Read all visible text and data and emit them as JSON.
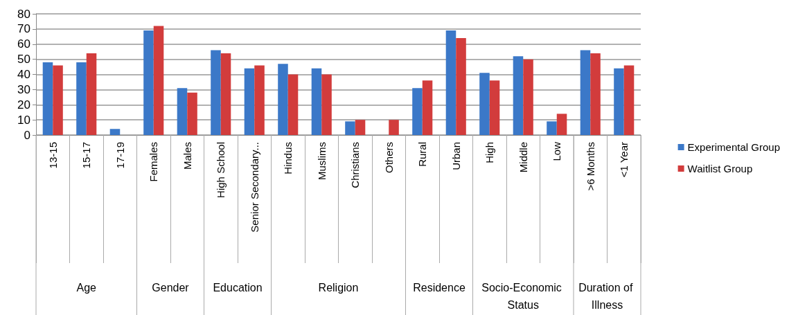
{
  "chart_data": {
    "type": "bar",
    "categories": [
      "13-15",
      "15-17",
      "17-19",
      "Females",
      "Males",
      "High School",
      "Senior Secondary...",
      "Hindus",
      "Muslims",
      "Christians",
      "Others",
      "Rural",
      "Urban",
      "High",
      "Middle",
      "Low",
      ">6 Months",
      "<1 Year"
    ],
    "series": [
      {
        "name": "Experimental Group",
        "color": "#3b78c8",
        "values": [
          48,
          48,
          4,
          69,
          31,
          56,
          44,
          47,
          44,
          9,
          0,
          31,
          69,
          41,
          52,
          9,
          56,
          44
        ]
      },
      {
        "name": "Waitlist Group",
        "color": "#d23c3c",
        "values": [
          46,
          54,
          0,
          72,
          28,
          54,
          46,
          40,
          40,
          10,
          10,
          36,
          64,
          36,
          50,
          14,
          54,
          46
        ]
      }
    ],
    "annotations": [
      "Age",
      "Gender",
      "Education",
      "Religion",
      "Residence",
      "Socio-Economic Status",
      "Duration of Illness"
    ],
    "ylim": [
      0,
      80
    ],
    "yticks": [
      0,
      10,
      20,
      30,
      40,
      50,
      60,
      70,
      80
    ],
    "grid": "y",
    "legend": "right"
  }
}
